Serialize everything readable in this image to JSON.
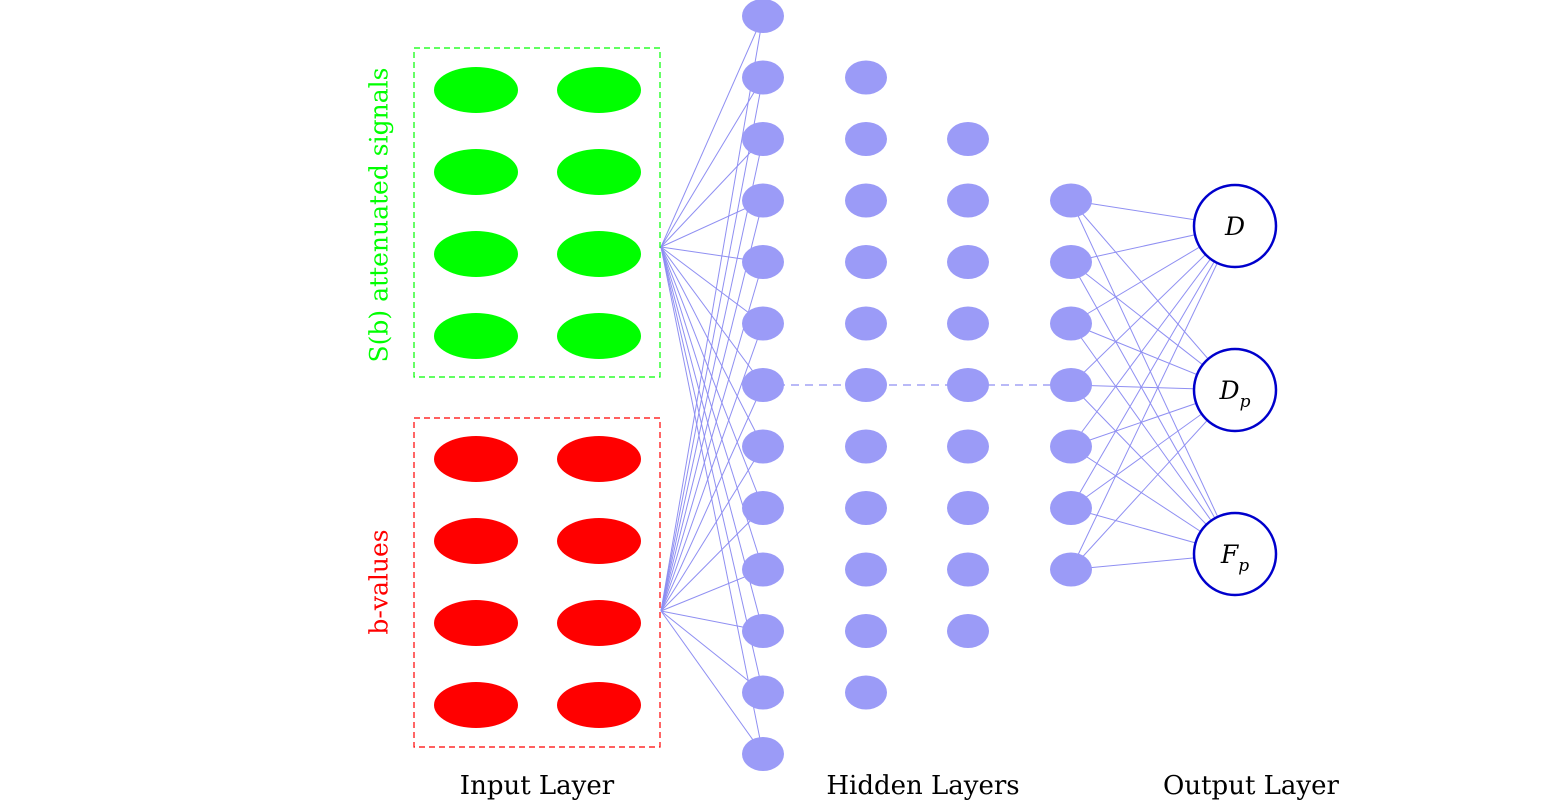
{
  "groups": {
    "signals_label": "S(b) attenuated signals",
    "bvalues_label": "b-values"
  },
  "layers": {
    "input_label": "Input Layer",
    "hidden_label": "Hidden Layers",
    "output_label": "Output Layer"
  },
  "outputs": [
    {
      "base": "D",
      "sub": ""
    },
    {
      "base": "D",
      "sub": "p"
    },
    {
      "base": "F",
      "sub": "p"
    }
  ],
  "structure": {
    "input_rows_per_group": 4,
    "input_columns": 2,
    "hidden_layer_sizes": [
      13,
      11,
      9,
      7
    ],
    "output_size": 3
  },
  "colors": {
    "signals": "#00ff00",
    "bvalues": "#ff0000",
    "hidden": "#9b9bf7",
    "edge": "#8f8ff2",
    "output_stroke": "#0000cc",
    "text": "#000000"
  }
}
